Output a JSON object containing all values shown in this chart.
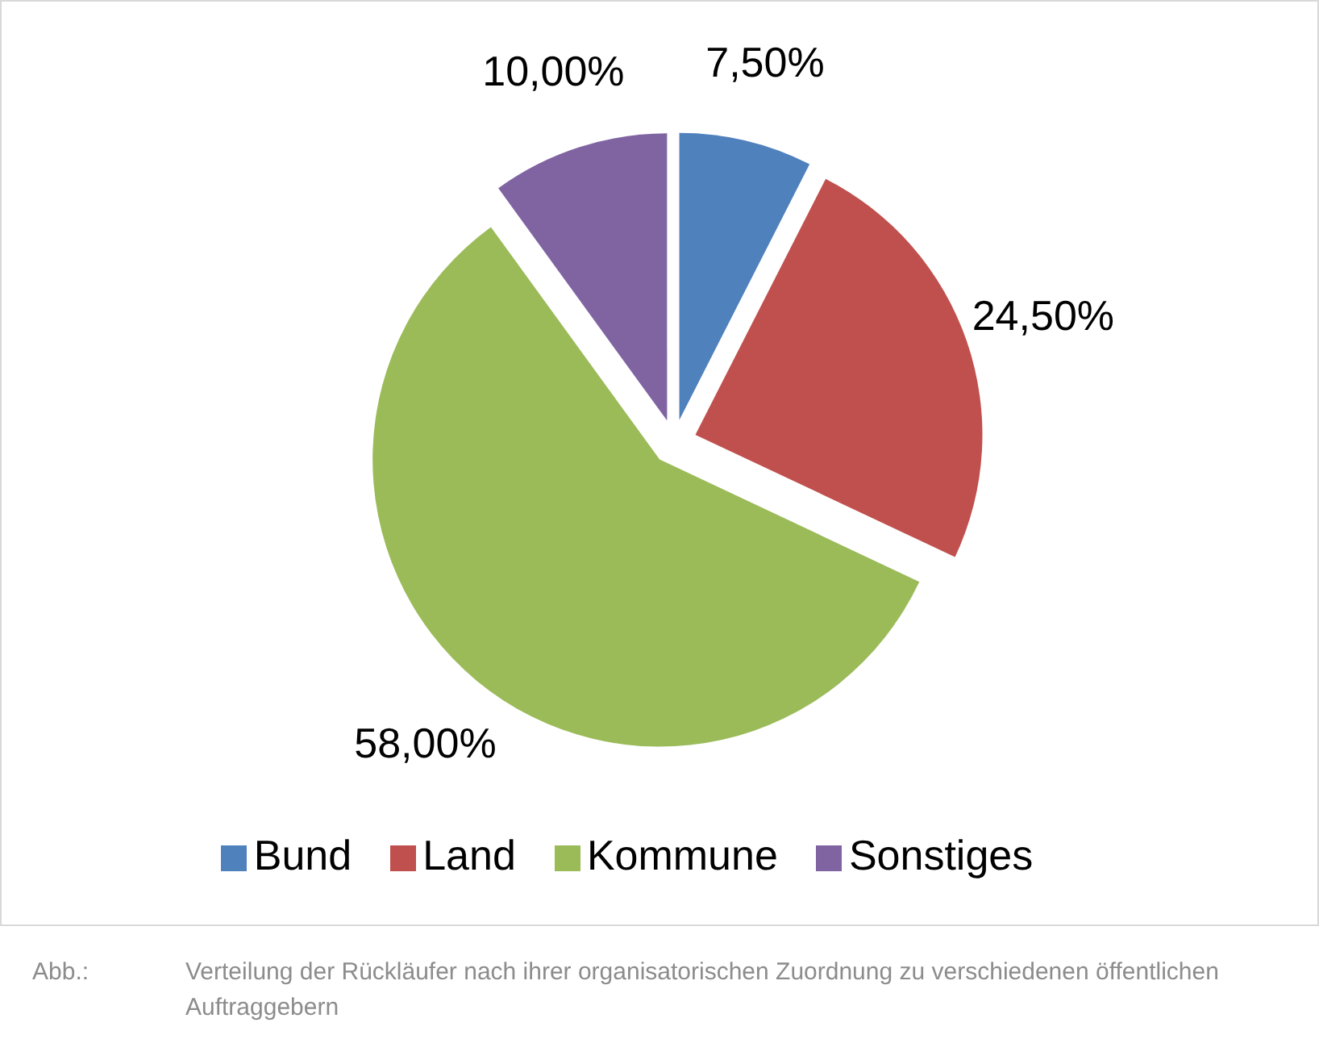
{
  "chart_data": {
    "type": "pie",
    "categories": [
      "Bund",
      "Land",
      "Kommune",
      "Sonstiges"
    ],
    "values": [
      7.5,
      24.5,
      58,
      10
    ],
    "value_labels": [
      "7,50%",
      "24,50%",
      "58,00%",
      "10,00%"
    ],
    "colors": [
      "#4f81bd",
      "#c0504d",
      "#9bbb59",
      "#8064a2"
    ],
    "legend": "bottom",
    "annotations": [
      "Abb.: Verteilung der Rückläufer nach ihrer organisatorischen Zuordnung zu verschiedenen öffentlichen Auftraggebern"
    ]
  }
}
